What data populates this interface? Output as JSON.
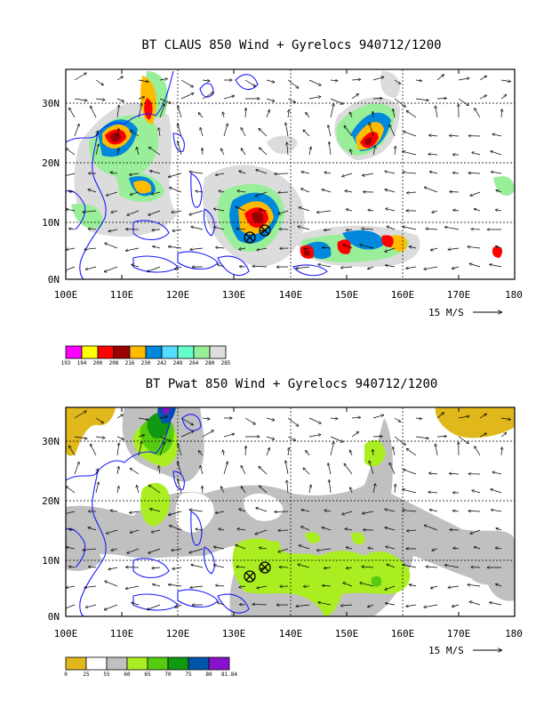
{
  "panels": [
    {
      "title": "BT CLAUS 850 Wind + Gyrelocs 940712/1200",
      "x_ticks": [
        "100E",
        "110E",
        "120E",
        "130E",
        "140E",
        "150E",
        "160E",
        "170E",
        "180"
      ],
      "y_ticks": [
        "0N",
        "10N",
        "20N",
        "30N"
      ],
      "scale_label": "15 M/S",
      "colorbar": {
        "labels": [
          "193",
          "194",
          "200",
          "208",
          "216",
          "230",
          "242",
          "248",
          "264",
          "280",
          "285"
        ],
        "colors": [
          "#ff00ff",
          "#ffff00",
          "#ff0000",
          "#990000",
          "#ffbb00",
          "#0088dd",
          "#55ddff",
          "#66ffcc",
          "#99ee99",
          "#dddddd"
        ]
      }
    },
    {
      "title": "BT Pwat 850 Wind + Gyrelocs 940712/1200",
      "x_ticks": [
        "100E",
        "110E",
        "120E",
        "130E",
        "140E",
        "150E",
        "160E",
        "170E",
        "180"
      ],
      "y_ticks": [
        "0N",
        "10N",
        "20N",
        "30N"
      ],
      "scale_label": "15 M/S",
      "colorbar": {
        "labels": [
          "0",
          "25",
          "55",
          "60",
          "65",
          "70",
          "75",
          "80",
          "81.84"
        ],
        "colors": [
          "#e0b81c",
          "#ffffff",
          "#c0c0c0",
          "#aaee22",
          "#55cc11",
          "#119911",
          "#0055aa",
          "#8811cc"
        ]
      }
    }
  ],
  "chart_data": [
    {
      "type": "heatmap",
      "title": "BT CLAUS 850 Wind + Gyrelocs 940712/1200",
      "xlim": [
        100,
        180
      ],
      "ylim": [
        0,
        35
      ],
      "x_ticks": [
        100,
        110,
        120,
        130,
        140,
        150,
        160,
        170,
        180
      ],
      "y_ticks": [
        0,
        10,
        20,
        30
      ],
      "grid": true,
      "colorbar_levels": [
        193,
        194,
        200,
        208,
        216,
        230,
        242,
        248,
        264,
        280,
        285
      ],
      "gyre_locations": [
        {
          "lon": 132.5,
          "lat": 7.5
        },
        {
          "lon": 135.0,
          "lat": 8.5
        }
      ],
      "vector_scale": "15 M/S"
    },
    {
      "type": "heatmap",
      "title": "BT Pwat 850 Wind + Gyrelocs 940712/1200",
      "xlim": [
        100,
        180
      ],
      "ylim": [
        0,
        35
      ],
      "x_ticks": [
        100,
        110,
        120,
        130,
        140,
        150,
        160,
        170,
        180
      ],
      "y_ticks": [
        0,
        10,
        20,
        30
      ],
      "grid": true,
      "colorbar_levels": [
        0,
        25,
        55,
        60,
        65,
        70,
        75,
        80,
        81.84
      ],
      "gyre_locations": [
        {
          "lon": 132.5,
          "lat": 7.5
        },
        {
          "lon": 135.0,
          "lat": 8.5
        }
      ],
      "vector_scale": "15 M/S"
    }
  ]
}
